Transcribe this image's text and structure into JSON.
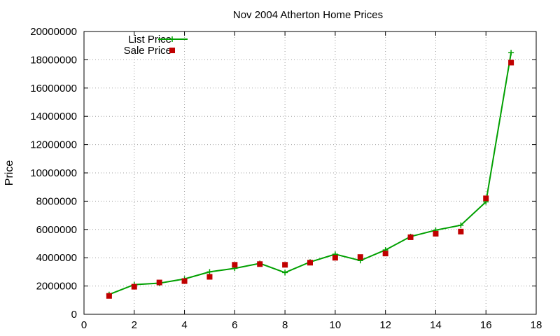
{
  "chart_data": {
    "type": "line",
    "title": "Nov 2004 Atherton Home Prices",
    "xlabel": "",
    "ylabel": "Price",
    "xlim": [
      0,
      18
    ],
    "ylim": [
      0,
      20000000
    ],
    "x_ticks": [
      "0",
      "2",
      "4",
      "6",
      "8",
      "10",
      "12",
      "14",
      "16",
      "18"
    ],
    "y_ticks": [
      "0",
      "2000000",
      "4000000",
      "6000000",
      "8000000",
      "10000000",
      "12000000",
      "14000000",
      "16000000",
      "18000000",
      "20000000"
    ],
    "grid": true,
    "legend_position": "top-left",
    "series": [
      {
        "name": "List Price",
        "style": "linespoints",
        "color": "#00a000",
        "marker": "plus",
        "x": [
          1,
          2,
          3,
          4,
          5,
          6,
          7,
          8,
          9,
          10,
          11,
          12,
          13,
          14,
          15,
          16,
          17
        ],
        "values": [
          1400000,
          2100000,
          2200000,
          2500000,
          3000000,
          3250000,
          3600000,
          2950000,
          3700000,
          4250000,
          3800000,
          4550000,
          5500000,
          5950000,
          6300000,
          7950000,
          18500000
        ]
      },
      {
        "name": "Sale Price",
        "style": "points",
        "color": "#c00000",
        "marker": "square",
        "x": [
          1,
          2,
          3,
          4,
          5,
          6,
          7,
          8,
          9,
          10,
          11,
          12,
          13,
          14,
          15,
          16,
          17
        ],
        "values": [
          1300000,
          1950000,
          2250000,
          2350000,
          2650000,
          3500000,
          3550000,
          3500000,
          3650000,
          4000000,
          4050000,
          4300000,
          5450000,
          5700000,
          5850000,
          8200000,
          17800000
        ]
      }
    ]
  }
}
